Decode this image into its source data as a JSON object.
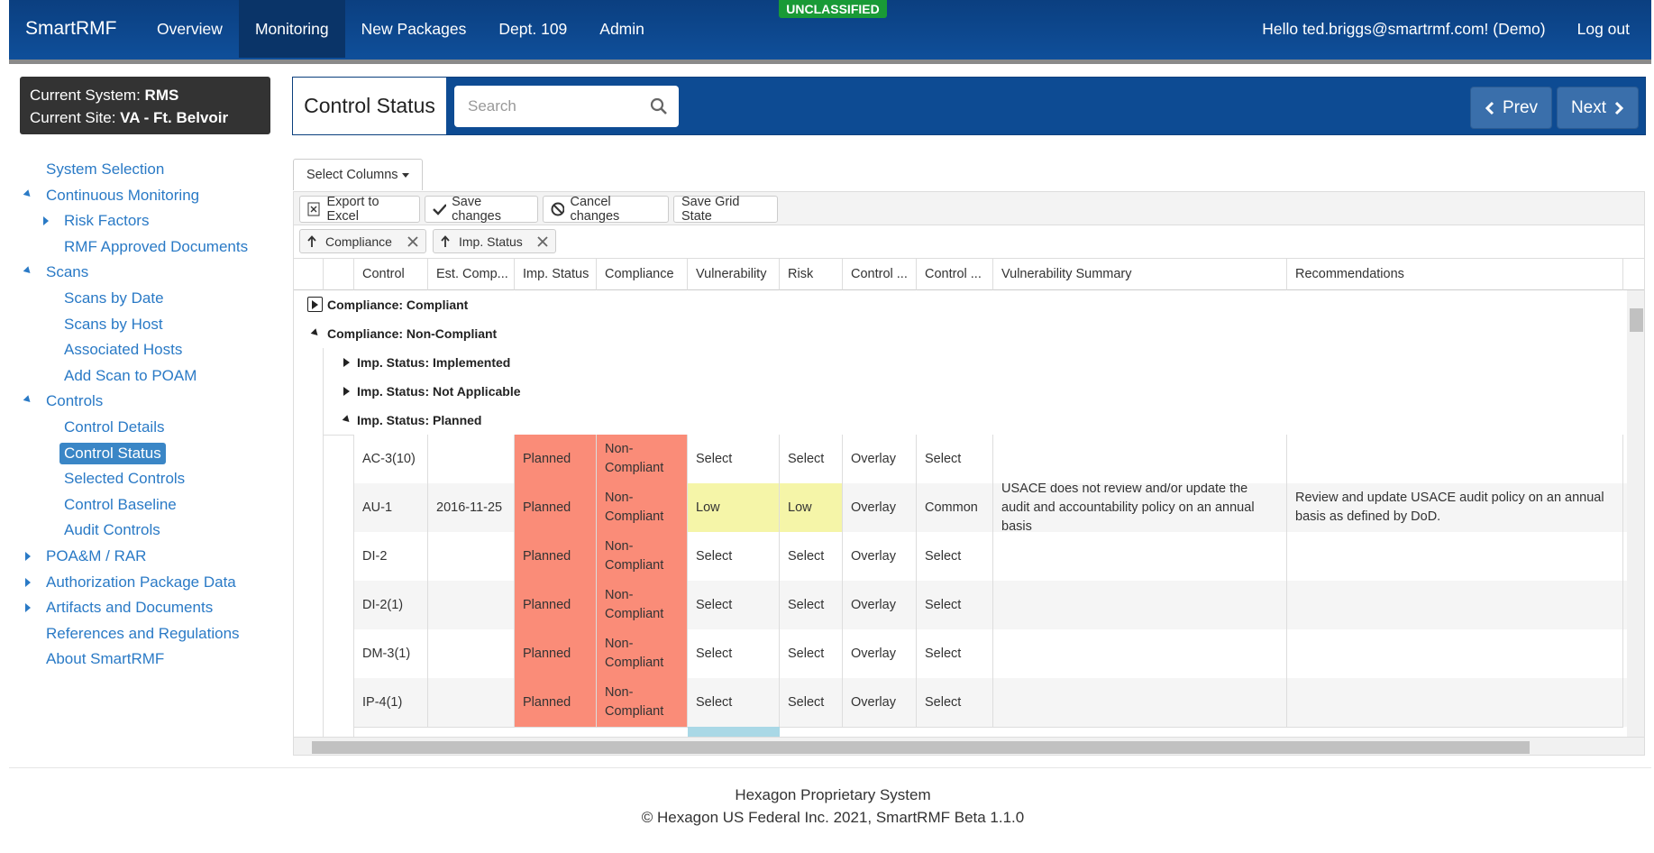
{
  "banner": "UNCLASSIFIED",
  "nav": {
    "brand": "SmartRMF",
    "items": [
      "Overview",
      "Monitoring",
      "New Packages",
      "Dept. 109",
      "Admin"
    ],
    "active": 1,
    "user": "Hello ted.briggs@smartrmf.com! (Demo)",
    "logout": "Log out"
  },
  "context": {
    "system_label": "Current System:",
    "system": "RMS",
    "site_label": "Current Site:",
    "site": "VA - Ft. Belvoir"
  },
  "sidebar": [
    {
      "label": "System Selection",
      "level": 0
    },
    {
      "label": "Continuous Monitoring",
      "level": 0,
      "expanded": true
    },
    {
      "label": "Risk Factors",
      "level": 1,
      "expanded": false
    },
    {
      "label": "RMF Approved Documents",
      "level": 1
    },
    {
      "label": "Scans",
      "level": 0,
      "expanded": true
    },
    {
      "label": "Scans by Date",
      "level": 1
    },
    {
      "label": "Scans by Host",
      "level": 1
    },
    {
      "label": "Associated Hosts",
      "level": 1
    },
    {
      "label": "Add Scan to POAM",
      "level": 1
    },
    {
      "label": "Controls",
      "level": 0,
      "expanded": true
    },
    {
      "label": "Control Details",
      "level": 1
    },
    {
      "label": "Control Status",
      "level": 1,
      "selected": true
    },
    {
      "label": "Selected Controls",
      "level": 1
    },
    {
      "label": "Control Baseline",
      "level": 1
    },
    {
      "label": "Audit Controls",
      "level": 1
    },
    {
      "label": "POA&M / RAR",
      "level": 0,
      "expanded": false
    },
    {
      "label": "Authorization Package Data",
      "level": 0,
      "expanded": false
    },
    {
      "label": "Artifacts and Documents",
      "level": 0,
      "expanded": false
    },
    {
      "label": "References and Regulations",
      "level": 0
    },
    {
      "label": "About SmartRMF",
      "level": 0
    }
  ],
  "header": {
    "title": "Control Status",
    "search_placeholder": "Search",
    "prev": "Prev",
    "next": "Next"
  },
  "toolbar": {
    "select_columns": "Select Columns",
    "buttons": [
      "Export to Excel",
      "Save changes",
      "Cancel changes",
      "Save Grid State"
    ],
    "group_chips": [
      "Compliance",
      "Imp. Status"
    ]
  },
  "table": {
    "columns": [
      "Control",
      "Est. Comp...",
      "Imp. Status",
      "Compliance",
      "Vulnerability",
      "Risk",
      "Control ...",
      "Control ...",
      "Vulnerability Summary",
      "Recommendations"
    ],
    "groups": [
      {
        "label": "Compliance: Compliant",
        "level": 0,
        "expanded": false
      },
      {
        "label": "Compliance: Non-Compliant",
        "level": 0,
        "expanded": true
      },
      {
        "label": "Imp. Status: Implemented",
        "level": 1,
        "expanded": false
      },
      {
        "label": "Imp. Status: Not Applicable",
        "level": 1,
        "expanded": false
      },
      {
        "label": "Imp. Status: Planned",
        "level": 1,
        "expanded": true
      }
    ],
    "rows": [
      [
        "AC-3(10)",
        null,
        "Planned",
        "Non-Compliant",
        "Select",
        "Select",
        "Overlay",
        "Select",
        null,
        null
      ],
      [
        "AU-1",
        "2016-11-25",
        "Planned",
        "Non-Compliant",
        "Low",
        "Low",
        "Overlay",
        "Common",
        "USACE does not review and/or update the audit and accountability policy on an annual basis",
        "Review and update USACE audit policy on an annual basis as defined by DoD."
      ],
      [
        "DI-2",
        null,
        "Planned",
        "Non-Compliant",
        "Select",
        "Select",
        "Overlay",
        "Select",
        null,
        null
      ],
      [
        "DI-2(1)",
        null,
        "Planned",
        "Non-Compliant",
        "Select",
        "Select",
        "Overlay",
        "Select",
        null,
        null
      ],
      [
        "DM-3(1)",
        null,
        "Planned",
        "Non-Compliant",
        "Select",
        "Select",
        "Overlay",
        "Select",
        null,
        null
      ],
      [
        "IP-4(1)",
        null,
        "Planned",
        "Non-Compliant",
        "Select",
        "Select",
        "Overlay",
        "Select",
        null,
        null
      ]
    ]
  },
  "footer": [
    "Hexagon Proprietary System",
    "© Hexagon US Federal Inc. 2021, SmartRMF Beta 1.1.0"
  ]
}
